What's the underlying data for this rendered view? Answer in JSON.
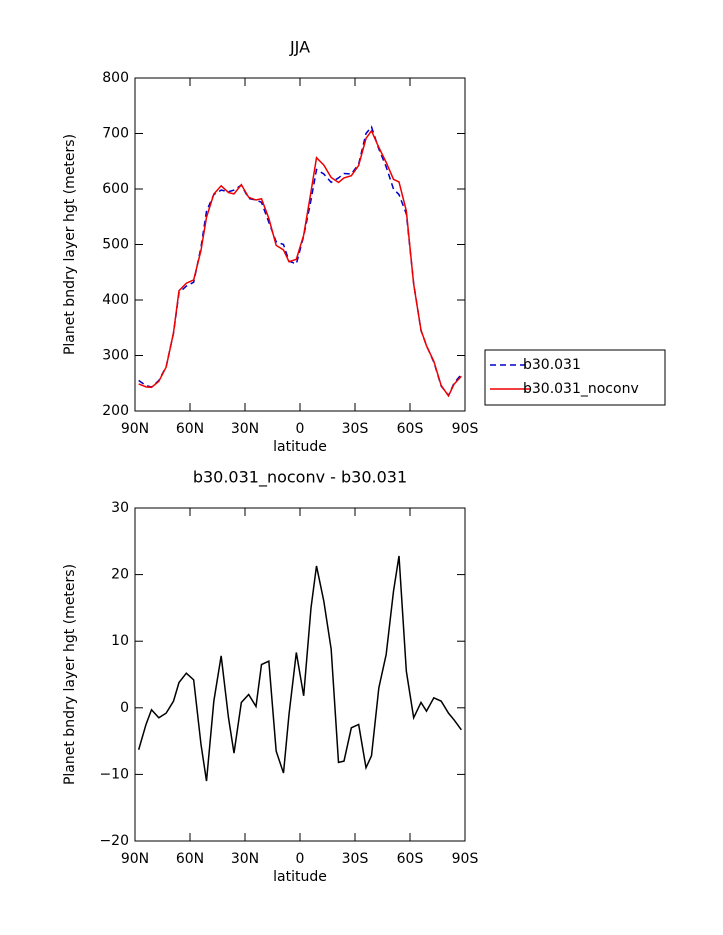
{
  "chart_data": [
    {
      "type": "line",
      "title": "JJA",
      "xlabel": "latitude",
      "ylabel": "Planet bndry layer hgt (meters)",
      "x": [
        88,
        84,
        81,
        77,
        73,
        69,
        66,
        62,
        58,
        54,
        51,
        47,
        43,
        39,
        36,
        32,
        28,
        24,
        21,
        17,
        13,
        9,
        6,
        2,
        -2,
        -6,
        -9,
        -13,
        -17,
        -21,
        -24,
        -28,
        -32,
        -36,
        -39,
        -43,
        -47,
        -51,
        -54,
        -58,
        -62,
        -66,
        -69,
        -73,
        -77,
        -81,
        -84,
        -88
      ],
      "xlim": [
        90,
        -90
      ],
      "xticks": [
        {
          "value": 90,
          "label": "90N"
        },
        {
          "value": 60,
          "label": "60N"
        },
        {
          "value": 30,
          "label": "30N"
        },
        0,
        {
          "value": -30,
          "label": "30S"
        },
        {
          "value": -60,
          "label": "60S"
        },
        {
          "value": -90,
          "label": "90S"
        }
      ],
      "ylim": [
        200,
        800
      ],
      "yticks": [
        200,
        300,
        400,
        500,
        600,
        700,
        800
      ],
      "legend": "right",
      "series": [
        {
          "name": "b30.031",
          "color": "#0000cc",
          "line_style": "dashed",
          "values": [
            255,
            246,
            243,
            255,
            280,
            340,
            413,
            425,
            432,
            495,
            560,
            590,
            598,
            595,
            598,
            607,
            583,
            580,
            576,
            540,
            505,
            500,
            470,
            465,
            515,
            580,
            635,
            627,
            612,
            620,
            628,
            627,
            645,
            700,
            712,
            672,
            640,
            600,
            590,
            555,
            430,
            345,
            318,
            288,
            245,
            228,
            250,
            266
          ]
        },
        {
          "name": "b30.031_noconv",
          "color": "#ee0000",
          "line_style": "solid",
          "values": [
            248.7,
            243.5,
            242.7,
            253.5,
            279.2,
            341,
            416.8,
            430.2,
            436.2,
            489.5,
            549,
            591,
            605.8,
            593.5,
            591.2,
            607.8,
            585,
            580.2,
            582.5,
            547,
            498.5,
            490.2,
            469,
            473.3,
            516.8,
            595,
            656.3,
            643,
            620.8,
            611.8,
            620,
            624,
            642.5,
            691,
            704.8,
            675,
            648,
            617.5,
            612.8,
            560.5,
            428.5,
            345.8,
            317.5,
            289.5,
            246,
            227.2,
            248.2,
            262.7
          ]
        }
      ]
    },
    {
      "type": "line",
      "title": "b30.031_noconv - b30.031",
      "xlabel": "latitude",
      "ylabel": "Planet bndry layer hgt (meters)",
      "x": [
        88,
        84,
        81,
        77,
        73,
        69,
        66,
        62,
        58,
        54,
        51,
        47,
        43,
        39,
        36,
        32,
        28,
        24,
        21,
        17,
        13,
        9,
        6,
        2,
        -2,
        -6,
        -9,
        -13,
        -17,
        -21,
        -24,
        -28,
        -32,
        -36,
        -39,
        -43,
        -47,
        -51,
        -54,
        -58,
        -62,
        -66,
        -69,
        -73,
        -77,
        -81,
        -84,
        -88
      ],
      "xlim": [
        90,
        -90
      ],
      "xticks": [
        {
          "value": 90,
          "label": "90N"
        },
        {
          "value": 60,
          "label": "60N"
        },
        {
          "value": 30,
          "label": "30N"
        },
        0,
        {
          "value": -30,
          "label": "30S"
        },
        {
          "value": -60,
          "label": "60S"
        },
        {
          "value": -90,
          "label": "90S"
        }
      ],
      "ylim": [
        -20,
        30
      ],
      "yticks": [
        {
          "value": -20,
          "label": "−20"
        },
        {
          "value": -10,
          "label": "−10"
        },
        0,
        10,
        20,
        30
      ],
      "series": [
        {
          "color": "#000000",
          "line_style": "solid",
          "values": [
            -6.3,
            -2.5,
            -0.3,
            -1.5,
            -0.8,
            1,
            3.8,
            5.2,
            4.2,
            -5.5,
            -11,
            1,
            7.8,
            -1.5,
            -6.8,
            0.8,
            2,
            0.2,
            6.5,
            7,
            -6.5,
            -9.8,
            -1,
            8.3,
            1.8,
            15,
            21.3,
            16,
            8.8,
            -8.2,
            -8,
            -3,
            -2.5,
            -9,
            -7.2,
            3,
            8,
            17.5,
            22.8,
            5.5,
            -1.5,
            0.8,
            -0.5,
            1.5,
            1,
            -0.8,
            -1.8,
            -3.3
          ]
        }
      ]
    }
  ]
}
